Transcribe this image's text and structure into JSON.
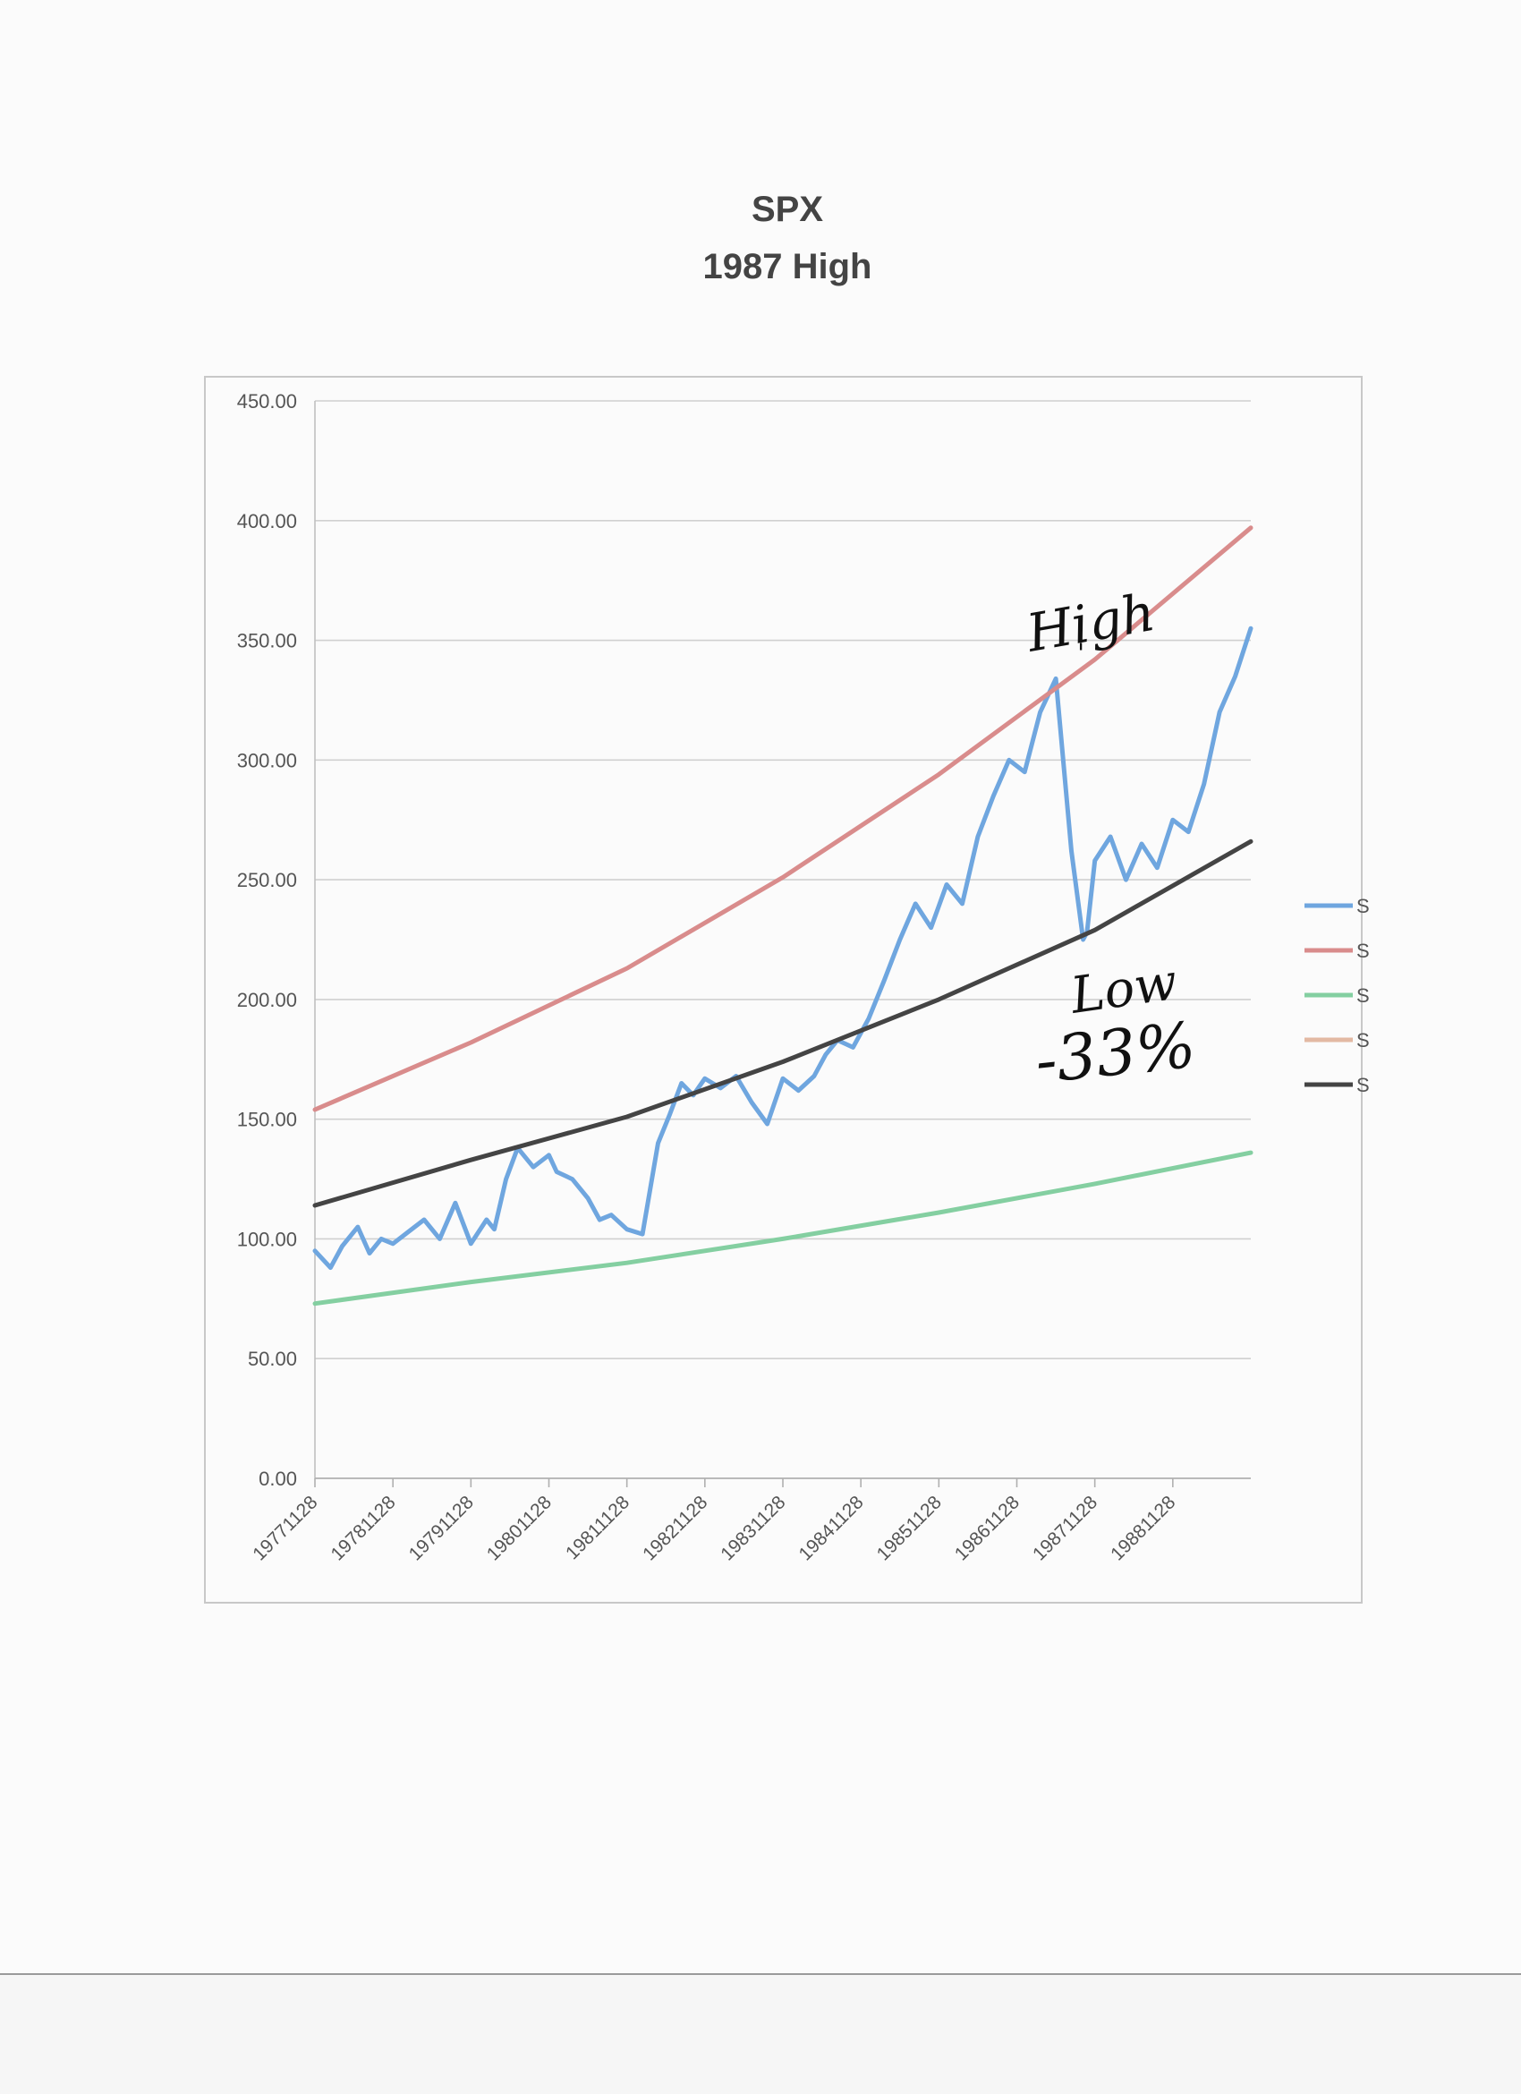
{
  "chart_data": {
    "type": "line",
    "title": "SPX",
    "subtitle": "1987 High",
    "xlabel": "",
    "ylabel": "",
    "ylim": [
      0,
      450
    ],
    "y_ticks": [
      "0.00",
      "50.00",
      "100.00",
      "150.00",
      "200.00",
      "250.00",
      "300.00",
      "350.00",
      "400.00",
      "450.00"
    ],
    "x_ticks": [
      "19771128",
      "19781128",
      "19791128",
      "19801128",
      "19811128",
      "19821128",
      "19831128",
      "19841128",
      "19851128",
      "19861128",
      "19871128",
      "19881128"
    ],
    "x_range_years": [
      1977.9,
      1989.9
    ],
    "grid": true,
    "legend_position": "right",
    "legend_entries_text": [
      "S",
      "S",
      "S",
      "S",
      "S"
    ],
    "series": [
      {
        "color": "#6fa6df",
        "x": [
          1977.9,
          1978.1,
          1978.25,
          1978.45,
          1978.6,
          1978.75,
          1978.9,
          1979.1,
          1979.3,
          1979.5,
          1979.7,
          1979.9,
          1980.1,
          1980.2,
          1980.35,
          1980.5,
          1980.7,
          1980.9,
          1981.0,
          1981.2,
          1981.4,
          1981.55,
          1981.7,
          1981.9,
          1982.1,
          1982.3,
          1982.45,
          1982.6,
          1982.75,
          1982.9,
          1983.1,
          1983.3,
          1983.5,
          1983.7,
          1983.9,
          1984.1,
          1984.3,
          1984.45,
          1984.6,
          1984.8,
          1985.0,
          1985.2,
          1985.4,
          1985.6,
          1985.8,
          1986.0,
          1986.2,
          1986.4,
          1986.6,
          1986.8,
          1987.0,
          1987.2,
          1987.4,
          1987.6,
          1987.75,
          1987.8,
          1987.9,
          1988.1,
          1988.3,
          1988.5,
          1988.7,
          1988.9,
          1989.1,
          1989.3,
          1989.5,
          1989.7,
          1989.9
        ],
        "values": [
          95,
          88,
          97,
          105,
          94,
          100,
          98,
          103,
          108,
          100,
          115,
          98,
          108,
          104,
          125,
          138,
          130,
          135,
          128,
          125,
          117,
          108,
          110,
          104,
          102,
          140,
          152,
          165,
          160,
          167,
          163,
          168,
          157,
          148,
          167,
          162,
          168,
          177,
          183,
          180,
          192,
          208,
          225,
          240,
          230,
          248,
          240,
          268,
          285,
          300,
          295,
          320,
          334,
          262,
          225,
          228,
          258,
          268,
          250,
          265,
          255,
          275,
          270,
          290,
          320,
          335,
          355
        ]
      },
      {
        "color": "#d98c8c",
        "x": [
          1977.9,
          1979.9,
          1981.9,
          1983.9,
          1985.9,
          1987.9,
          1989.9
        ],
        "values": [
          154,
          182,
          213,
          251,
          294,
          342,
          397
        ]
      },
      {
        "color": "#84cfa1",
        "x": [
          1977.9,
          1979.9,
          1981.9,
          1983.9,
          1985.9,
          1987.9,
          1989.9
        ],
        "values": [
          73,
          82,
          90,
          100,
          111,
          123,
          136
        ]
      },
      {
        "color": "#444444",
        "x": [
          1977.9,
          1979.9,
          1981.9,
          1983.9,
          1985.9,
          1987.9,
          1989.9
        ],
        "values": [
          114,
          133,
          151,
          174,
          200,
          229,
          266
        ]
      }
    ],
    "annotations": [
      "High",
      "Low",
      "-33%"
    ]
  }
}
